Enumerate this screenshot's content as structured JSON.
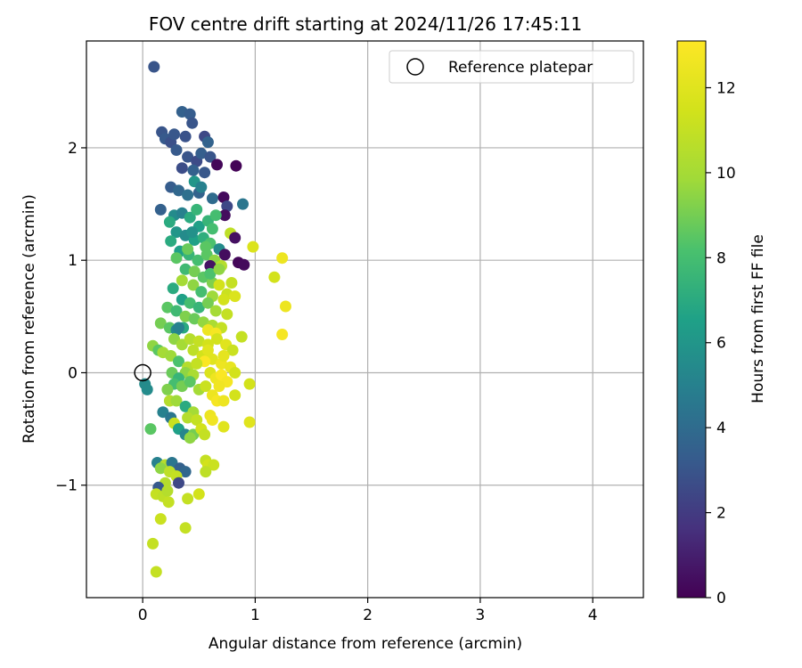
{
  "chart_data": {
    "type": "scatter",
    "title": "FOV centre drift starting at 2024/11/26 17:45:11",
    "xlabel": "Angular distance from reference (arcmin)",
    "ylabel": "Rotation from reference (arcmin)",
    "xlim": [
      -0.5,
      4.45
    ],
    "ylim": [
      -2.0,
      2.95
    ],
    "xticks": [
      0,
      1,
      2,
      3,
      4
    ],
    "yticks": [
      -1,
      0,
      1,
      2
    ],
    "xtick_labels": [
      "0",
      "1",
      "2",
      "3",
      "4"
    ],
    "ytick_labels": [
      "−1",
      "0",
      "1",
      "2"
    ],
    "grid": true,
    "legend": {
      "placement": "top-right",
      "label": "Reference platepar"
    },
    "reference_point": {
      "x": 0,
      "y": 0
    },
    "colorbar": {
      "label": "Hours from first FF file",
      "range": [
        0,
        13.1
      ],
      "ticks": [
        0,
        2,
        4,
        6,
        8,
        10,
        12
      ],
      "tick_labels": [
        "0",
        "2",
        "4",
        "6",
        "8",
        "10",
        "12"
      ],
      "colormap": "viridis"
    },
    "points": [
      [
        0.1,
        2.72,
        3.0
      ],
      [
        0.17,
        2.14,
        3.0
      ],
      [
        0.2,
        2.08,
        3.2
      ],
      [
        0.25,
        2.05,
        2.8
      ],
      [
        0.28,
        2.12,
        3.1
      ],
      [
        0.35,
        2.32,
        3.5
      ],
      [
        0.42,
        2.3,
        3.3
      ],
      [
        0.44,
        2.22,
        3.0
      ],
      [
        0.38,
        2.1,
        2.9
      ],
      [
        0.55,
        2.1,
        2.5
      ],
      [
        0.58,
        2.05,
        3.6
      ],
      [
        0.3,
        1.98,
        3.2
      ],
      [
        0.4,
        1.92,
        3.0
      ],
      [
        0.48,
        1.88,
        2.6
      ],
      [
        0.52,
        1.95,
        3.4
      ],
      [
        0.6,
        1.92,
        3.0
      ],
      [
        0.35,
        1.82,
        2.7
      ],
      [
        0.45,
        1.8,
        3.5
      ],
      [
        0.55,
        1.78,
        3.1
      ],
      [
        0.66,
        1.85,
        0.2
      ],
      [
        0.83,
        1.84,
        0.1
      ],
      [
        0.25,
        1.65,
        3.3
      ],
      [
        0.32,
        1.62,
        3.8
      ],
      [
        0.4,
        1.58,
        4.2
      ],
      [
        0.5,
        1.6,
        3.6
      ],
      [
        0.62,
        1.55,
        4.0
      ],
      [
        0.72,
        1.56,
        0.3
      ],
      [
        0.75,
        1.48,
        2.5
      ],
      [
        0.73,
        1.4,
        0.4
      ],
      [
        0.89,
        1.5,
        4.5
      ],
      [
        0.16,
        1.45,
        3.5
      ],
      [
        0.28,
        1.4,
        5.5
      ],
      [
        0.35,
        1.42,
        5.0
      ],
      [
        0.42,
        1.38,
        7.0
      ],
      [
        0.5,
        1.3,
        6.5
      ],
      [
        0.58,
        1.35,
        7.5
      ],
      [
        0.65,
        1.4,
        8.0
      ],
      [
        0.24,
        1.34,
        7.0
      ],
      [
        0.3,
        1.25,
        6.0
      ],
      [
        0.38,
        1.22,
        5.5
      ],
      [
        0.46,
        1.18,
        6.5
      ],
      [
        0.54,
        1.2,
        7.2
      ],
      [
        0.6,
        1.15,
        8.2
      ],
      [
        0.68,
        1.1,
        5.5
      ],
      [
        0.78,
        1.24,
        10.8
      ],
      [
        0.82,
        1.2,
        0.5
      ],
      [
        0.25,
        1.17,
        7.0
      ],
      [
        0.33,
        1.08,
        6.5
      ],
      [
        0.41,
        1.05,
        7.5
      ],
      [
        0.49,
        1.0,
        8.0
      ],
      [
        0.57,
        1.05,
        8.5
      ],
      [
        0.64,
        1.0,
        9.5
      ],
      [
        0.7,
        0.95,
        10.5
      ],
      [
        0.73,
        1.05,
        0.4
      ],
      [
        0.85,
        0.98,
        0.2
      ],
      [
        0.9,
        0.96,
        0.3
      ],
      [
        0.6,
        0.95,
        0.6
      ],
      [
        0.3,
        1.02,
        8.5
      ],
      [
        0.38,
        0.92,
        7.8
      ],
      [
        0.46,
        0.9,
        9.0
      ],
      [
        0.54,
        0.85,
        8.5
      ],
      [
        0.62,
        0.8,
        9.2
      ],
      [
        0.35,
        0.82,
        10.0
      ],
      [
        0.45,
        0.78,
        9.5
      ],
      [
        0.52,
        0.72,
        8.0
      ],
      [
        0.62,
        0.68,
        9.8
      ],
      [
        0.68,
        0.78,
        11.5
      ],
      [
        0.75,
        0.7,
        11.2
      ],
      [
        0.82,
        0.68,
        11.8
      ],
      [
        0.79,
        0.8,
        11.0
      ],
      [
        0.72,
        0.65,
        11.5
      ],
      [
        0.27,
        0.75,
        7.0
      ],
      [
        0.35,
        0.65,
        6.5
      ],
      [
        0.42,
        0.62,
        8.0
      ],
      [
        0.5,
        0.58,
        7.5
      ],
      [
        0.58,
        0.62,
        9.0
      ],
      [
        0.65,
        0.55,
        10.0
      ],
      [
        0.22,
        0.58,
        8.5
      ],
      [
        0.3,
        0.55,
        7.8
      ],
      [
        0.38,
        0.5,
        9.2
      ],
      [
        0.46,
        0.48,
        8.8
      ],
      [
        0.54,
        0.45,
        9.6
      ],
      [
        0.62,
        0.42,
        10.2
      ],
      [
        0.7,
        0.4,
        11.0
      ],
      [
        0.75,
        0.52,
        11.0
      ],
      [
        0.58,
        0.38,
        12.5
      ],
      [
        0.65,
        0.35,
        12.8
      ],
      [
        0.16,
        0.44,
        9.0
      ],
      [
        0.24,
        0.4,
        8.5
      ],
      [
        0.3,
        0.38,
        5.5
      ],
      [
        0.36,
        0.4,
        7.0
      ],
      [
        0.28,
        0.3,
        9.5
      ],
      [
        0.35,
        0.25,
        10.0
      ],
      [
        0.42,
        0.3,
        10.5
      ],
      [
        0.5,
        0.28,
        11.0
      ],
      [
        0.58,
        0.25,
        11.5
      ],
      [
        0.66,
        0.3,
        11.5
      ],
      [
        0.74,
        0.25,
        12.0
      ],
      [
        0.88,
        0.32,
        11.0
      ],
      [
        0.8,
        0.2,
        11.2
      ],
      [
        0.45,
        0.2,
        10.8
      ],
      [
        0.53,
        0.15,
        11.5
      ],
      [
        0.62,
        0.12,
        12.0
      ],
      [
        0.7,
        0.08,
        12.5
      ],
      [
        0.78,
        0.05,
        12.3
      ],
      [
        0.82,
        0.0,
        11.5
      ],
      [
        0.72,
        0.15,
        12.2
      ],
      [
        0.55,
        0.1,
        13.0
      ],
      [
        0.58,
        0.2,
        12.0
      ],
      [
        0.09,
        0.24,
        9.5
      ],
      [
        0.14,
        0.2,
        8.5
      ],
      [
        0.18,
        0.18,
        10.0
      ],
      [
        0.25,
        0.15,
        9.8
      ],
      [
        0.32,
        0.1,
        8.2
      ],
      [
        0.4,
        0.05,
        10.5
      ],
      [
        0.48,
        0.08,
        11.0
      ],
      [
        0.38,
        0.0,
        9.5
      ],
      [
        0.45,
        -0.02,
        10.2
      ],
      [
        0.6,
        0.0,
        11.8
      ],
      [
        0.65,
        -0.05,
        12.5
      ],
      [
        0.7,
        -0.02,
        13.0
      ],
      [
        0.75,
        -0.08,
        12.8
      ],
      [
        0.68,
        -0.12,
        12.6
      ],
      [
        0.26,
        0.0,
        8.8
      ],
      [
        0.32,
        -0.05,
        7.5
      ],
      [
        0.28,
        -0.1,
        8.0
      ],
      [
        0.35,
        -0.12,
        9.0
      ],
      [
        0.42,
        -0.08,
        8.5
      ],
      [
        0.5,
        -0.15,
        10.0
      ],
      [
        0.56,
        -0.12,
        11.2
      ],
      [
        0.62,
        -0.2,
        12.5
      ],
      [
        0.66,
        -0.25,
        12.8
      ],
      [
        0.72,
        -0.25,
        12.5
      ],
      [
        0.82,
        -0.2,
        11.5
      ],
      [
        0.95,
        -0.1,
        11.5
      ],
      [
        0.22,
        -0.15,
        9.2
      ],
      [
        0.24,
        -0.25,
        10.5
      ],
      [
        0.3,
        -0.25,
        9.8
      ],
      [
        0.38,
        -0.3,
        7.0
      ],
      [
        0.45,
        -0.35,
        10.0
      ],
      [
        0.4,
        -0.4,
        10.5
      ],
      [
        0.48,
        -0.42,
        11.0
      ],
      [
        0.6,
        -0.38,
        12.5
      ],
      [
        0.62,
        -0.42,
        12.6
      ],
      [
        0.72,
        -0.48,
        12.0
      ],
      [
        0.95,
        -0.44,
        12.0
      ],
      [
        0.02,
        -0.1,
        5.5
      ],
      [
        0.04,
        -0.15,
        5.5
      ],
      [
        0.18,
        -0.35,
        5.0
      ],
      [
        0.25,
        -0.4,
        4.5
      ],
      [
        0.28,
        -0.45,
        11.2
      ],
      [
        0.32,
        -0.5,
        6.5
      ],
      [
        0.38,
        -0.55,
        5.2
      ],
      [
        0.45,
        -0.55,
        9.0
      ],
      [
        0.42,
        -0.58,
        9.5
      ],
      [
        0.52,
        -0.5,
        11.5
      ],
      [
        0.55,
        -0.55,
        11.0
      ],
      [
        0.07,
        -0.5,
        8.5
      ],
      [
        0.13,
        -0.8,
        5.0
      ],
      [
        0.2,
        -0.82,
        10.5
      ],
      [
        0.26,
        -0.8,
        4.5
      ],
      [
        0.33,
        -0.85,
        3.5
      ],
      [
        0.38,
        -0.88,
        3.8
      ],
      [
        0.16,
        -0.85,
        9.5
      ],
      [
        0.24,
        -0.88,
        10.8
      ],
      [
        0.3,
        -0.92,
        11.0
      ],
      [
        0.32,
        -0.98,
        2.5
      ],
      [
        0.2,
        -0.98,
        10.5
      ],
      [
        0.14,
        -1.02,
        3.2
      ],
      [
        0.12,
        -1.08,
        11.0
      ],
      [
        0.18,
        -1.1,
        10.8
      ],
      [
        0.22,
        -1.05,
        10.5
      ],
      [
        0.23,
        -1.15,
        11.0
      ],
      [
        0.16,
        -1.3,
        11.2
      ],
      [
        0.4,
        -1.12,
        11.0
      ],
      [
        0.5,
        -1.08,
        11.5
      ],
      [
        0.38,
        -1.38,
        11.0
      ],
      [
        0.09,
        -1.52,
        11.0
      ],
      [
        0.12,
        -1.77,
        11.0
      ],
      [
        0.56,
        -0.78,
        11.0
      ],
      [
        0.58,
        -0.82,
        11.5
      ],
      [
        0.63,
        -0.82,
        11.2
      ],
      [
        0.56,
        -0.88,
        10.8
      ],
      [
        1.24,
        1.02,
        12.5
      ],
      [
        1.17,
        0.85,
        11.5
      ],
      [
        0.98,
        1.12,
        11.8
      ],
      [
        1.27,
        0.59,
        12.5
      ],
      [
        1.24,
        0.34,
        12.8
      ],
      [
        0.46,
        1.7,
        6.0
      ],
      [
        0.52,
        1.65,
        5.0
      ],
      [
        0.62,
        1.28,
        8.0
      ],
      [
        0.56,
        1.12,
        8.5
      ],
      [
        0.48,
        1.45,
        7.5
      ],
      [
        0.44,
        1.25,
        5.8
      ],
      [
        0.4,
        1.1,
        8.8
      ],
      [
        0.6,
        0.88,
        8.2
      ],
      [
        0.68,
        0.92,
        9.5
      ],
      [
        0.32,
        0.4,
        5.0
      ]
    ]
  }
}
